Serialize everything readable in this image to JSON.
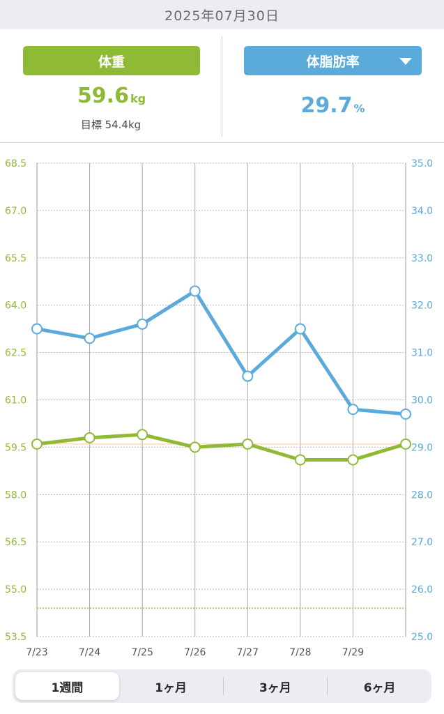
{
  "date": "2025年07月30日",
  "weight": {
    "label": "体重",
    "value": "59.6",
    "unit": "kg",
    "target": "目標 54.4kg"
  },
  "fat": {
    "label": "体脂肪率",
    "value": "29.7",
    "unit": "%"
  },
  "tabs": [
    "1週間",
    "1ヶ月",
    "3ヶ月",
    "6ヶ月"
  ],
  "active_tab": 0,
  "colors": {
    "weight": "#8fba35",
    "fat": "#5aaadb",
    "target_line": "#a8d060",
    "current_line": "#f4c7a0"
  },
  "chart_data": {
    "type": "line",
    "x_labels": [
      "7/23",
      "7/24",
      "7/25",
      "7/26",
      "7/27",
      "7/28",
      "7/29",
      ""
    ],
    "series": [
      {
        "name": "体重",
        "axis": "left",
        "values": [
          59.6,
          59.8,
          59.9,
          59.5,
          59.6,
          59.1,
          59.1,
          59.6
        ]
      },
      {
        "name": "体脂肪率",
        "axis": "right",
        "values": [
          31.5,
          31.3,
          31.6,
          32.3,
          30.5,
          31.5,
          29.8,
          29.7
        ]
      }
    ],
    "y_left": {
      "min": 53.5,
      "max": 68.5,
      "ticks": [
        "68.5",
        "67.0",
        "65.5",
        "64.0",
        "62.5",
        "61.0",
        "59.5",
        "58.0",
        "56.5",
        "55.0",
        "53.5"
      ]
    },
    "y_right": {
      "min": 25.0,
      "max": 35.0,
      "ticks": [
        "35.0",
        "34.0",
        "33.0",
        "32.0",
        "31.0",
        "30.0",
        "29.0",
        "28.0",
        "27.0",
        "26.0",
        "25.0"
      ]
    },
    "target_weight": 54.4,
    "current_weight": 59.6
  }
}
